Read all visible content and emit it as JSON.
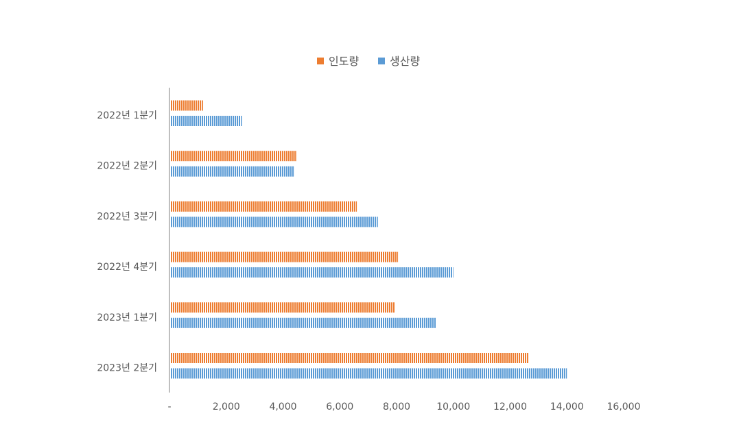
{
  "chart_data": {
    "type": "bar",
    "orientation": "horizontal",
    "categories": [
      "2022년 1분기",
      "2022년 2분기",
      "2022년 3분기",
      "2022년 4분기",
      "2023년 1분기",
      "2023년 2분기"
    ],
    "series": [
      {
        "name": "인도량",
        "color": "#ed7d31",
        "values": [
          1180,
          4480,
          6600,
          8050,
          7950,
          12650
        ]
      },
      {
        "name": "생산량",
        "color": "#5b9bd5",
        "values": [
          2550,
          4400,
          7340,
          10000,
          9400,
          14000
        ]
      }
    ],
    "xlim": [
      0,
      16000
    ],
    "x_ticks": [
      0,
      2000,
      4000,
      6000,
      8000,
      10000,
      12000,
      14000,
      16000
    ],
    "x_tick_labels": [
      "-",
      "2,000",
      "4,000",
      "6,000",
      "8,000",
      "10,000",
      "12,000",
      "14,000",
      "16,000"
    ],
    "legend_position": "top-center",
    "grid": false,
    "bar_pattern": "vertical-hatch"
  }
}
